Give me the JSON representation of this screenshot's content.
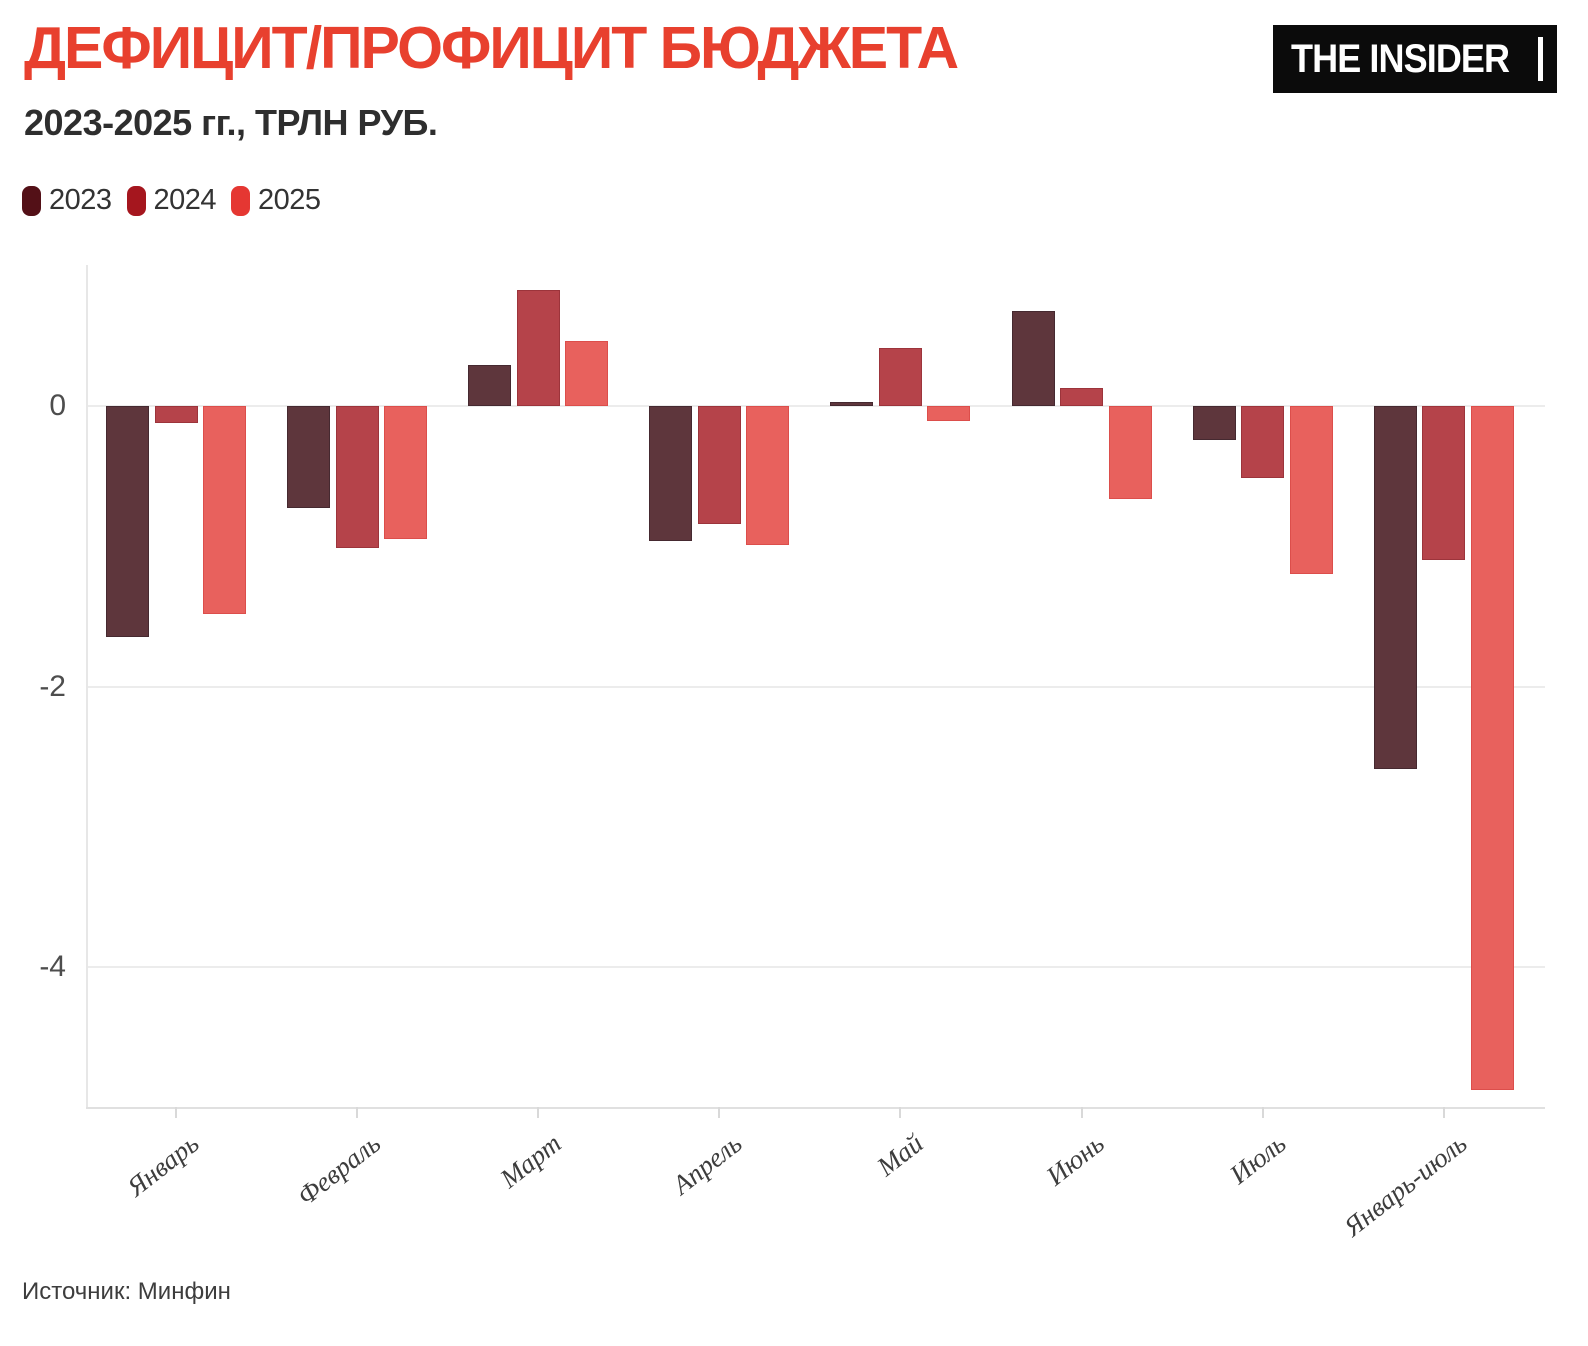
{
  "header": {
    "title": "ДЕФИЦИТ/ПРОФИЦИТ БЮДЖЕТА",
    "subtitle": "2023-2025 гг., ТРЛН РУБ.",
    "logo_text": "THE INSIDER"
  },
  "footer": {
    "source": "Источник: Минфин"
  },
  "colors": {
    "title": "#E8402E",
    "subtitle": "#2E2E2E",
    "background": "#FFFFFF",
    "logo_background": "#0B0B0B",
    "logo_text": "#FFFFFF",
    "gridline": "#ECECEC",
    "axis_tick_label": "#4D4D4D",
    "x_tick_label": "#3D3D3D"
  },
  "chart_data": {
    "type": "bar",
    "title": "ДЕФИЦИТ/ПРОФИЦИТ БЮДЖЕТА",
    "subtitle": "2023-2025 гг., ТРЛН РУБ.",
    "xlabel": "",
    "ylabel": "ТРЛН РУБ.",
    "categories": [
      "Январь",
      "Февраль",
      "Март",
      "Апрель",
      "Май",
      "Июнь",
      "Июль",
      "Январь-июль"
    ],
    "series": [
      {
        "name": "2023",
        "legend_color": "#531017",
        "bar_color": "#5E363C",
        "edge_color": "#452930",
        "values": [
          -1.65,
          -0.73,
          0.29,
          -0.96,
          0.03,
          0.68,
          -0.24,
          -2.59
        ]
      },
      {
        "name": "2024",
        "legend_color": "#A5161E",
        "bar_color": "#B5434A",
        "edge_color": "#9C343B",
        "values": [
          -0.12,
          -1.01,
          0.83,
          -0.84,
          0.41,
          0.13,
          -0.51,
          -1.1
        ]
      },
      {
        "name": "2025",
        "legend_color": "#E53732",
        "bar_color": "#E8615D",
        "edge_color": "#DC4E4B",
        "values": [
          -1.48,
          -0.95,
          0.46,
          -0.99,
          -0.11,
          -0.66,
          -1.2,
          -4.88
        ]
      }
    ],
    "ylim": [
      -5,
      1
    ],
    "yticks": [
      0,
      -2,
      -4
    ],
    "grid": true,
    "legend_position": "top-left"
  }
}
